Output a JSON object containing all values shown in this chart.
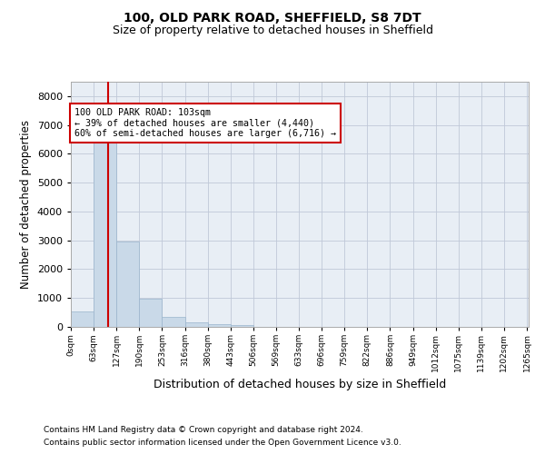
{
  "title1": "100, OLD PARK ROAD, SHEFFIELD, S8 7DT",
  "title2": "Size of property relative to detached houses in Sheffield",
  "xlabel": "Distribution of detached houses by size in Sheffield",
  "ylabel": "Number of detached properties",
  "footnote1": "Contains HM Land Registry data © Crown copyright and database right 2024.",
  "footnote2": "Contains public sector information licensed under the Open Government Licence v3.0.",
  "bar_color": "#c9d9e8",
  "bar_edge_color": "#9ab4cc",
  "grid_color": "#c0c8d8",
  "background_color": "#e8eef5",
  "annotation_text": "100 OLD PARK ROAD: 103sqm\n← 39% of detached houses are smaller (4,440)\n60% of semi-detached houses are larger (6,716) →",
  "annotation_box_color": "#ffffff",
  "annotation_border_color": "#cc0000",
  "vline_color": "#cc0000",
  "vline_x": 103,
  "bin_width": 63,
  "num_bins": 20,
  "bar_heights": [
    550,
    6400,
    2950,
    970,
    340,
    165,
    110,
    65,
    0,
    0,
    0,
    0,
    0,
    0,
    0,
    0,
    0,
    0,
    0,
    0
  ],
  "ylim": [
    0,
    8500
  ],
  "yticks": [
    0,
    1000,
    2000,
    3000,
    4000,
    5000,
    6000,
    7000,
    8000
  ],
  "xlim": [
    0,
    1265
  ],
  "xtick_labels": [
    "0sqm",
    "63sqm",
    "127sqm",
    "190sqm",
    "253sqm",
    "316sqm",
    "380sqm",
    "443sqm",
    "506sqm",
    "569sqm",
    "633sqm",
    "696sqm",
    "759sqm",
    "822sqm",
    "886sqm",
    "949sqm",
    "1012sqm",
    "1075sqm",
    "1139sqm",
    "1202sqm",
    "1265sqm"
  ]
}
